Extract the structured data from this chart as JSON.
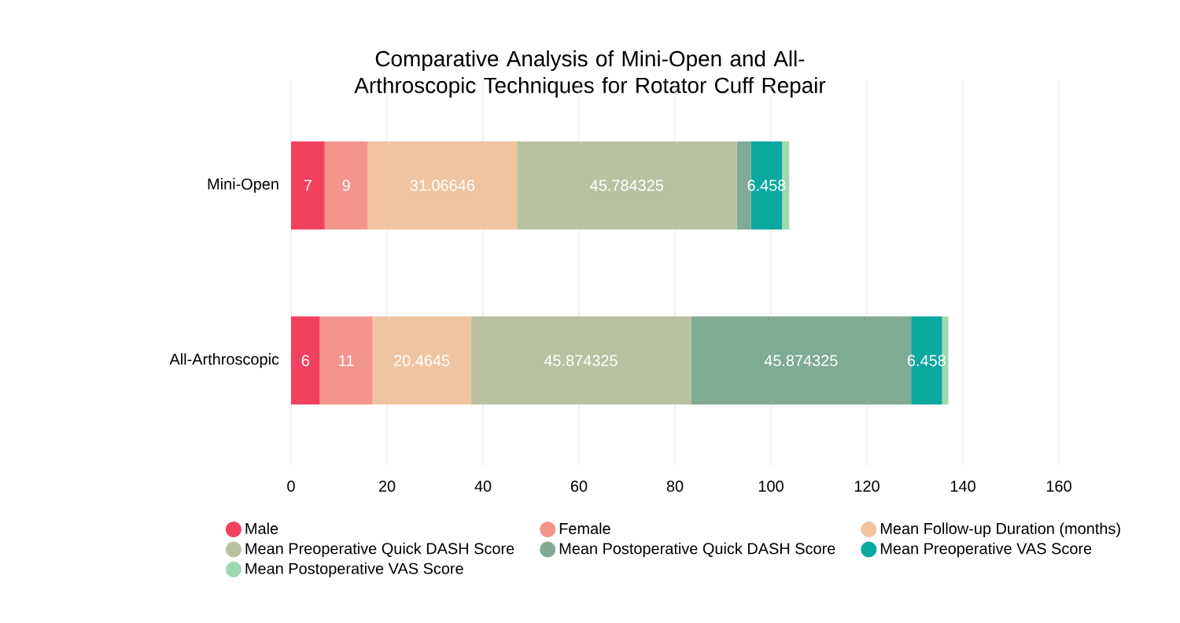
{
  "chart_data": {
    "type": "bar",
    "orientation": "horizontal",
    "stacked": true,
    "title": "Comparative Analysis of Mini-Open and All-Arthroscopic Techniques for Rotator Cuff Repair",
    "categories": [
      "Mini-Open",
      "All-Arthroscopic"
    ],
    "series": [
      {
        "name": "Male",
        "color": "#f2405f",
        "values": [
          7,
          6
        ],
        "value_labels": [
          "7",
          "6"
        ]
      },
      {
        "name": "Female",
        "color": "#f4958c",
        "values": [
          9,
          11
        ],
        "value_labels": [
          "9",
          "11"
        ]
      },
      {
        "name": "Mean Follow-up Duration (months)",
        "color": "#f0c4a0",
        "values": [
          31.06646,
          20.4645
        ],
        "value_labels": [
          "31.06646",
          "20.4645"
        ]
      },
      {
        "name": "Mean Preoperative Quick DASH Score",
        "color": "#b9c2a0",
        "values": [
          45.784325,
          45.874325
        ],
        "value_labels": [
          "45.784325",
          "45.874325"
        ]
      },
      {
        "name": "Mean Postoperative Quick DASH Score",
        "color": "#7faa94",
        "values": [
          3.0,
          45.874325
        ],
        "value_labels": [
          null,
          "45.874325"
        ]
      },
      {
        "name": "Mean Preoperative VAS Score",
        "color": "#0ba8a0",
        "values": [
          6.458,
          6.458
        ],
        "value_labels": [
          "6.458",
          "6.458"
        ]
      },
      {
        "name": "Mean Postoperative VAS Score",
        "color": "#9fd8b0",
        "values": [
          1.5,
          1.3
        ],
        "value_labels": [
          null,
          null
        ]
      }
    ],
    "xlim": [
      0,
      160
    ],
    "xticks": [
      0,
      20,
      40,
      60,
      80,
      100,
      120,
      140,
      160
    ],
    "grid": "x",
    "legend": "bottom",
    "marker": "circle"
  }
}
